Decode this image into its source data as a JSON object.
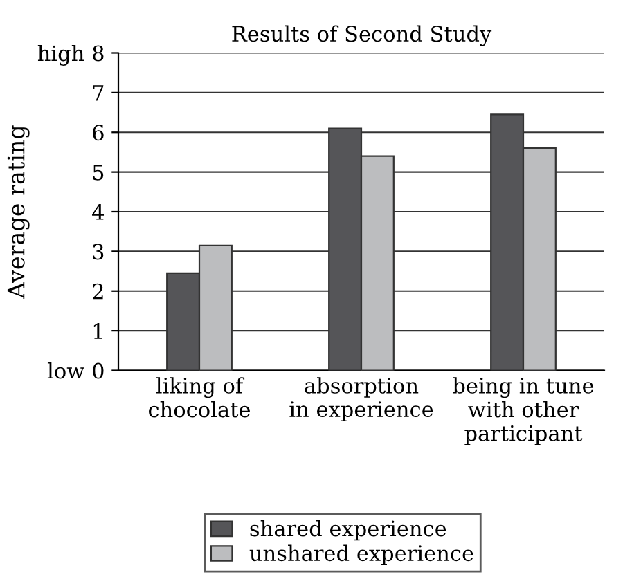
{
  "chart_data": {
    "type": "bar",
    "title": "Results of Second Study",
    "ylabel": "Average rating",
    "categories": [
      "liking of\nchocolate",
      "absorption\nin experience",
      "being in tune\nwith other\nparticipant"
    ],
    "series": [
      {
        "name": "shared experience",
        "color": "#555558",
        "values": [
          2.45,
          6.1,
          6.45
        ]
      },
      {
        "name": "unshared experience",
        "color": "#bcbdbf",
        "values": [
          3.15,
          5.4,
          5.6
        ]
      }
    ],
    "ylim": [
      0,
      8
    ],
    "yticks": [
      {
        "value": 0,
        "label": "low 0"
      },
      1,
      2,
      3,
      4,
      5,
      6,
      7,
      {
        "value": 8,
        "label": "high 8"
      }
    ],
    "grid": "y",
    "legend": "bottom"
  }
}
